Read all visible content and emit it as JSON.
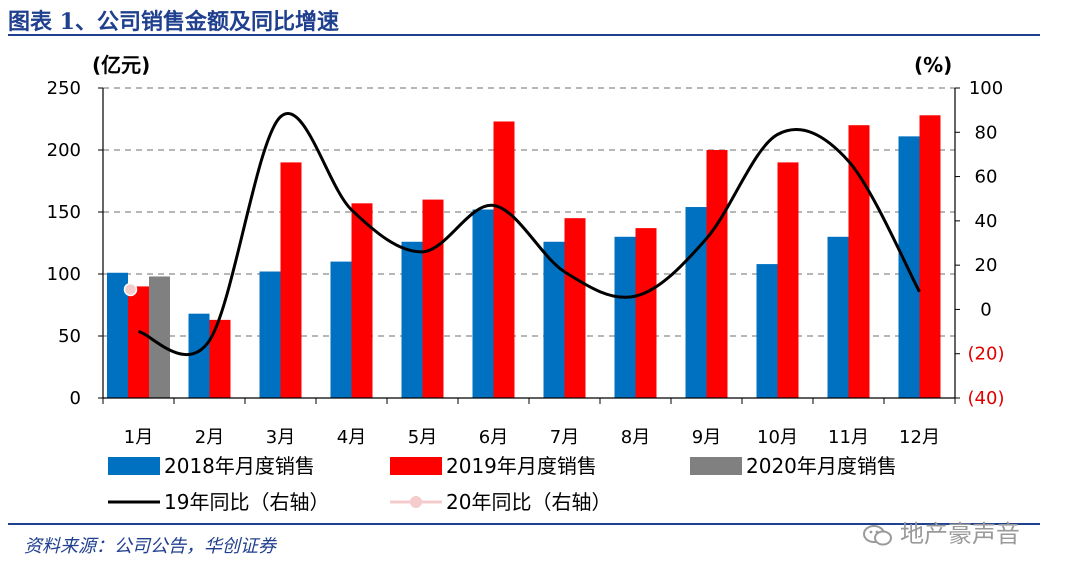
{
  "title": "图表 1、公司销售金额及同比增速",
  "source": "资料来源：公司公告，华创证券",
  "watermark": "地产豪声音",
  "chart_data": {
    "type": "bar",
    "categories": [
      "1月",
      "2月",
      "3月",
      "4月",
      "5月",
      "6月",
      "7月",
      "8月",
      "9月",
      "10月",
      "11月",
      "12月"
    ],
    "left_unit": "(亿元)",
    "right_unit": "(%)",
    "ylim_left": [
      0,
      250
    ],
    "yticks_left": [
      "0",
      "50",
      "100",
      "150",
      "200",
      "250"
    ],
    "ylim_right": [
      -40,
      100
    ],
    "yticks_right": [
      "(40)",
      "(20)",
      "0",
      "20",
      "40",
      "60",
      "80",
      "100"
    ],
    "grid": true,
    "legend_position": "bottom",
    "series": [
      {
        "name": "2018年月度销售",
        "kind": "bar",
        "axis": "left",
        "color": "#0070c0",
        "values": [
          101,
          68,
          102,
          110,
          126,
          152,
          126,
          130,
          154,
          108,
          130,
          211
        ]
      },
      {
        "name": "2019年月度销售",
        "kind": "bar",
        "axis": "left",
        "color": "#ff0000",
        "values": [
          90,
          63,
          190,
          157,
          160,
          223,
          145,
          137,
          200,
          190,
          220,
          228
        ]
      },
      {
        "name": "2020年月度销售",
        "kind": "bar",
        "axis": "left",
        "color": "#808080",
        "values": [
          98,
          null,
          null,
          null,
          null,
          null,
          null,
          null,
          null,
          null,
          null,
          null
        ]
      },
      {
        "name": "19年同比（右轴）",
        "kind": "line",
        "axis": "right",
        "color": "#000000",
        "values": [
          -10,
          -14,
          87,
          45,
          26,
          47,
          17,
          6,
          32,
          79,
          67,
          8
        ]
      },
      {
        "name": "20年同比（右轴）",
        "kind": "marker",
        "axis": "right",
        "color": "#f4cccc",
        "values": [
          9,
          null,
          null,
          null,
          null,
          null,
          null,
          null,
          null,
          null,
          null,
          null
        ]
      }
    ]
  }
}
